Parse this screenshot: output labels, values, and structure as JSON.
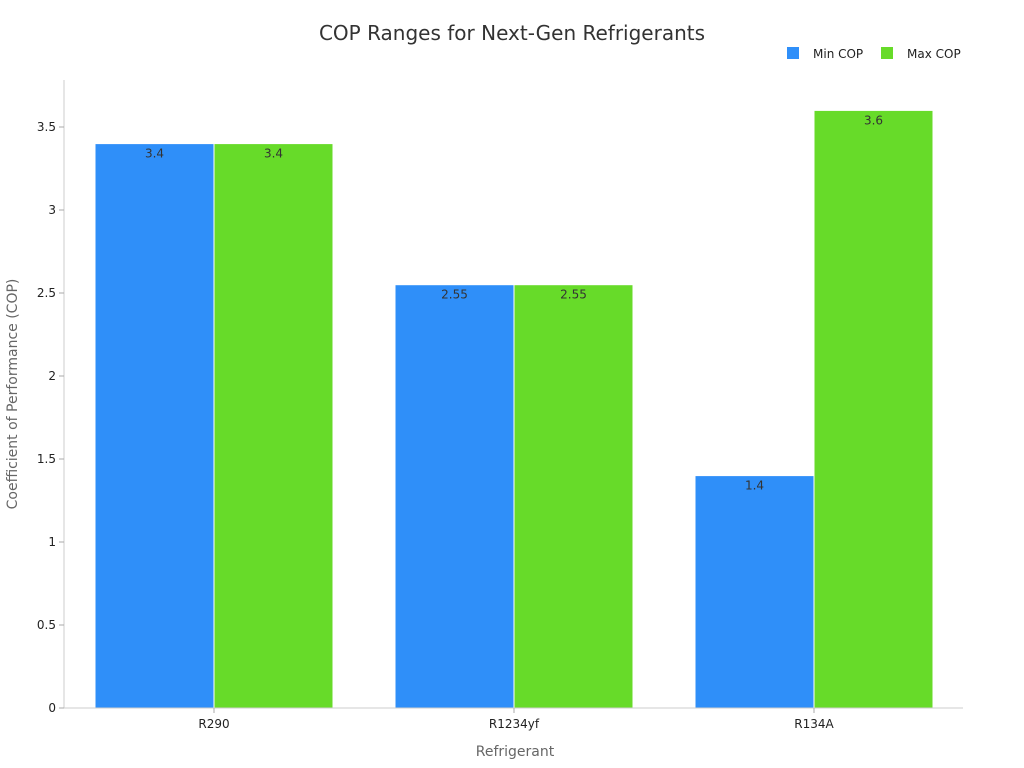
{
  "chart_data": {
    "type": "bar",
    "title": "COP Ranges for Next-Gen Refrigerants",
    "xlabel": "Refrigerant",
    "ylabel": "Coefficient of Performance (COP)",
    "categories": [
      "R290",
      "R1234yf",
      "R134A"
    ],
    "series": [
      {
        "name": "Min COP",
        "values": [
          3.4,
          2.55,
          1.4
        ],
        "color": "#2f8ff9"
      },
      {
        "name": "Max COP",
        "values": [
          3.4,
          2.55,
          3.6
        ],
        "color": "#67db29"
      }
    ],
    "ylim": [
      0,
      3.8
    ],
    "yticks": [
      0,
      0.5,
      1,
      1.5,
      2,
      2.5,
      3,
      3.5
    ],
    "ytick_labels": [
      "0",
      "0.5",
      "1",
      "1.5",
      "2",
      "2.5",
      "3",
      "3.5"
    ],
    "grid": false,
    "legend_position": "top-right",
    "data_labels": true
  }
}
